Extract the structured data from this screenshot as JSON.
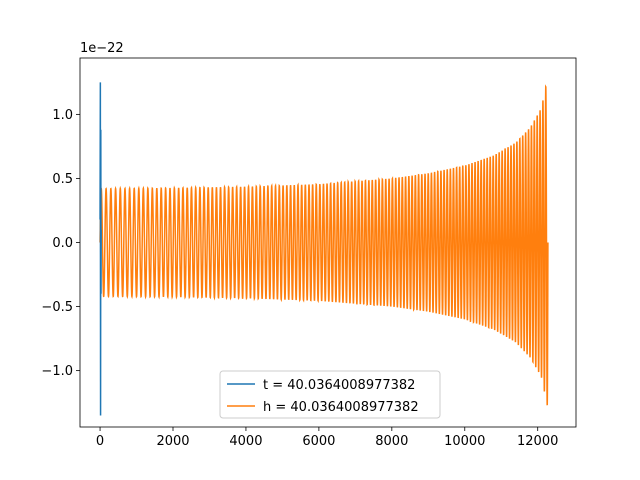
{
  "chart_data": {
    "type": "line",
    "title": "",
    "xlabel": "",
    "ylabel": "",
    "y_offset_label": "1e−22",
    "xlim": [
      -550,
      13050
    ],
    "ylim": [
      -1.44,
      1.44
    ],
    "x_ticks": [
      0,
      2000,
      4000,
      6000,
      8000,
      10000,
      12000
    ],
    "x_tick_labels": [
      "0",
      "2000",
      "4000",
      "6000",
      "8000",
      "10000",
      "12000"
    ],
    "y_ticks": [
      -1.0,
      -0.5,
      0.0,
      0.5,
      1.0
    ],
    "y_tick_labels": [
      "−1.0",
      "−0.5",
      "0.0",
      "0.5",
      "1.0"
    ],
    "grid": false,
    "legend_position": "lower-center",
    "series": [
      {
        "name": "t = 40.0364008977382",
        "color": "#1f77b4",
        "description": "short burst near x=0",
        "x_end": 30,
        "points": [
          [
            0,
            0.18
          ],
          [
            8,
            1.25
          ],
          [
            14,
            -1.35
          ],
          [
            20,
            0.88
          ],
          [
            26,
            -0.4
          ],
          [
            30,
            0.1
          ]
        ]
      },
      {
        "name": "h = 40.0364008977382",
        "color": "#ff7f0e",
        "description": "chirp oscillation with growing amplitude",
        "x_start": 0,
        "x_end": 12280,
        "initial_amplitude": 0.42,
        "peak_amplitude": 1.3,
        "cycles": 125,
        "envelope_samples": [
          [
            0,
            0.42
          ],
          [
            2000,
            0.425
          ],
          [
            4000,
            0.435
          ],
          [
            6000,
            0.455
          ],
          [
            8000,
            0.5
          ],
          [
            9000,
            0.54
          ],
          [
            10000,
            0.6
          ],
          [
            10800,
            0.68
          ],
          [
            11400,
            0.78
          ],
          [
            11800,
            0.9
          ],
          [
            12100,
            1.05
          ],
          [
            12280,
            1.3
          ]
        ]
      }
    ]
  }
}
